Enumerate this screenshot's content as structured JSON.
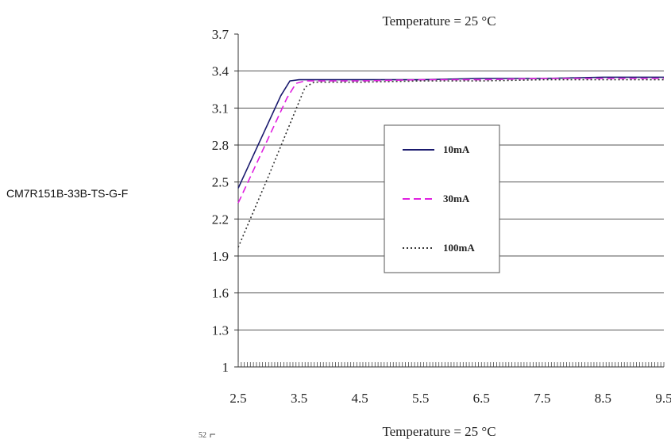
{
  "side_label": "CM7R151B-33B-TS-G-F",
  "next_panel": {
    "title": "Temperature = 25 °C",
    "tick": "52"
  },
  "chart_data": {
    "type": "line",
    "title": "Temperature = 25 °C",
    "xlabel": "",
    "ylabel": "",
    "xlim": [
      2.5,
      9.5
    ],
    "ylim": [
      1,
      3.7
    ],
    "x_ticks": [
      "2.5",
      "3.5",
      "4.5",
      "5.5",
      "6.5",
      "7.5",
      "8.5",
      "9.5"
    ],
    "y_ticks": [
      "1",
      "1.3",
      "1.6",
      "1.9",
      "2.2",
      "2.5",
      "2.8",
      "3.1",
      "3.4",
      "3.7"
    ],
    "grid": "horizontal",
    "legend_position": "center",
    "series": [
      {
        "name": "10mA",
        "color": "#1a1a6e",
        "dash": "solid",
        "x": [
          2.5,
          3.2,
          3.35,
          3.5,
          4.5,
          5.5,
          6.5,
          7.5,
          8.5,
          9.5
        ],
        "y": [
          2.45,
          3.2,
          3.32,
          3.33,
          3.33,
          3.33,
          3.34,
          3.34,
          3.35,
          3.35
        ]
      },
      {
        "name": "30mA",
        "color": "#e020e0",
        "dash": "dashed",
        "x": [
          2.5,
          3.3,
          3.45,
          3.6,
          4.5,
          5.5,
          6.5,
          7.5,
          8.5,
          9.5
        ],
        "y": [
          2.33,
          3.18,
          3.3,
          3.32,
          3.32,
          3.33,
          3.33,
          3.34,
          3.34,
          3.34
        ]
      },
      {
        "name": "100mA",
        "color": "#333333",
        "dash": "dotted",
        "x": [
          2.5,
          3.0,
          3.6,
          3.75,
          4.5,
          5.5,
          6.5,
          7.5,
          8.5,
          9.5
        ],
        "y": [
          1.97,
          2.55,
          3.27,
          3.31,
          3.31,
          3.32,
          3.32,
          3.33,
          3.33,
          3.33
        ]
      }
    ]
  }
}
